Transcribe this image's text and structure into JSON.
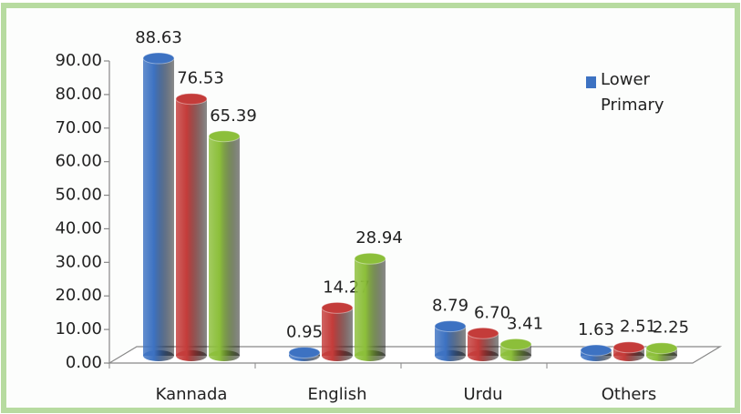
{
  "chart_data": {
    "type": "bar",
    "categories": [
      "Kannada",
      "English",
      "Urdu",
      "Others"
    ],
    "series": [
      {
        "name": "Lower Primary",
        "color": "#3d72c2",
        "values": [
          88.63,
          0.95,
          8.79,
          1.63
        ],
        "value_labels": [
          "88.63",
          "0.95",
          "8.79",
          "1.63"
        ]
      },
      {
        "color": "#c43c3a",
        "values": [
          76.53,
          14.27,
          6.7,
          2.51
        ],
        "value_labels": [
          "76.53",
          "14.27",
          "6.70",
          "2.51"
        ]
      },
      {
        "color": "#8cbf3a",
        "values": [
          65.39,
          28.94,
          3.41,
          2.25
        ],
        "value_labels": [
          "65.39",
          "28.94",
          "3.41",
          "2.25"
        ]
      }
    ],
    "ylim": [
      0,
      90
    ],
    "yticks": [
      {
        "value": 0,
        "label": "0.00"
      },
      {
        "value": 10,
        "label": "10.00"
      },
      {
        "value": 20,
        "label": "20.00"
      },
      {
        "value": 30,
        "label": "30.00"
      },
      {
        "value": 40,
        "label": "40.00"
      },
      {
        "value": 50,
        "label": "50.00"
      },
      {
        "value": 60,
        "label": "60.00"
      },
      {
        "value": 70,
        "label": "70.00"
      },
      {
        "value": 80,
        "label": "80.00"
      },
      {
        "value": 90,
        "label": "90.00"
      }
    ],
    "legend": "top-right"
  }
}
